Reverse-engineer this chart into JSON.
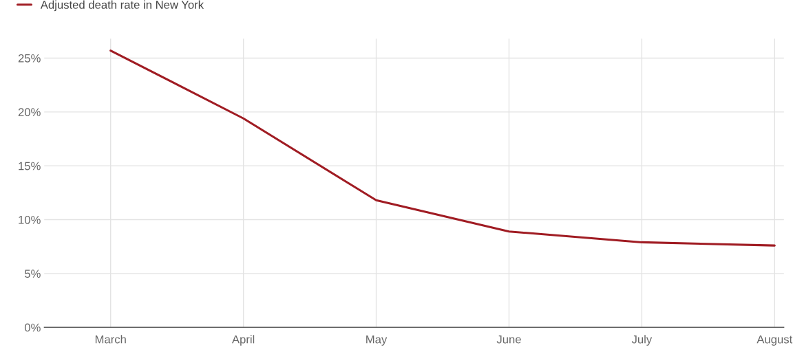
{
  "chart_data": {
    "type": "line",
    "categories": [
      "March",
      "April",
      "May",
      "June",
      "July",
      "August"
    ],
    "series": [
      {
        "name": "Adjusted death rate in New York",
        "color": "#a01c23",
        "values": [
          25.7,
          19.4,
          11.8,
          8.9,
          7.9,
          7.6
        ]
      }
    ],
    "ylim": [
      0,
      26.8
    ],
    "yticks": [
      {
        "value": 0,
        "label": "0%"
      },
      {
        "value": 5,
        "label": "5%"
      },
      {
        "value": 10,
        "label": "10%"
      },
      {
        "value": 15,
        "label": "15%"
      },
      {
        "value": 20,
        "label": "20%"
      },
      {
        "value": 25,
        "label": "25%"
      }
    ],
    "grid": true,
    "legend": "top left",
    "marker": "none",
    "line_style": "solid"
  }
}
